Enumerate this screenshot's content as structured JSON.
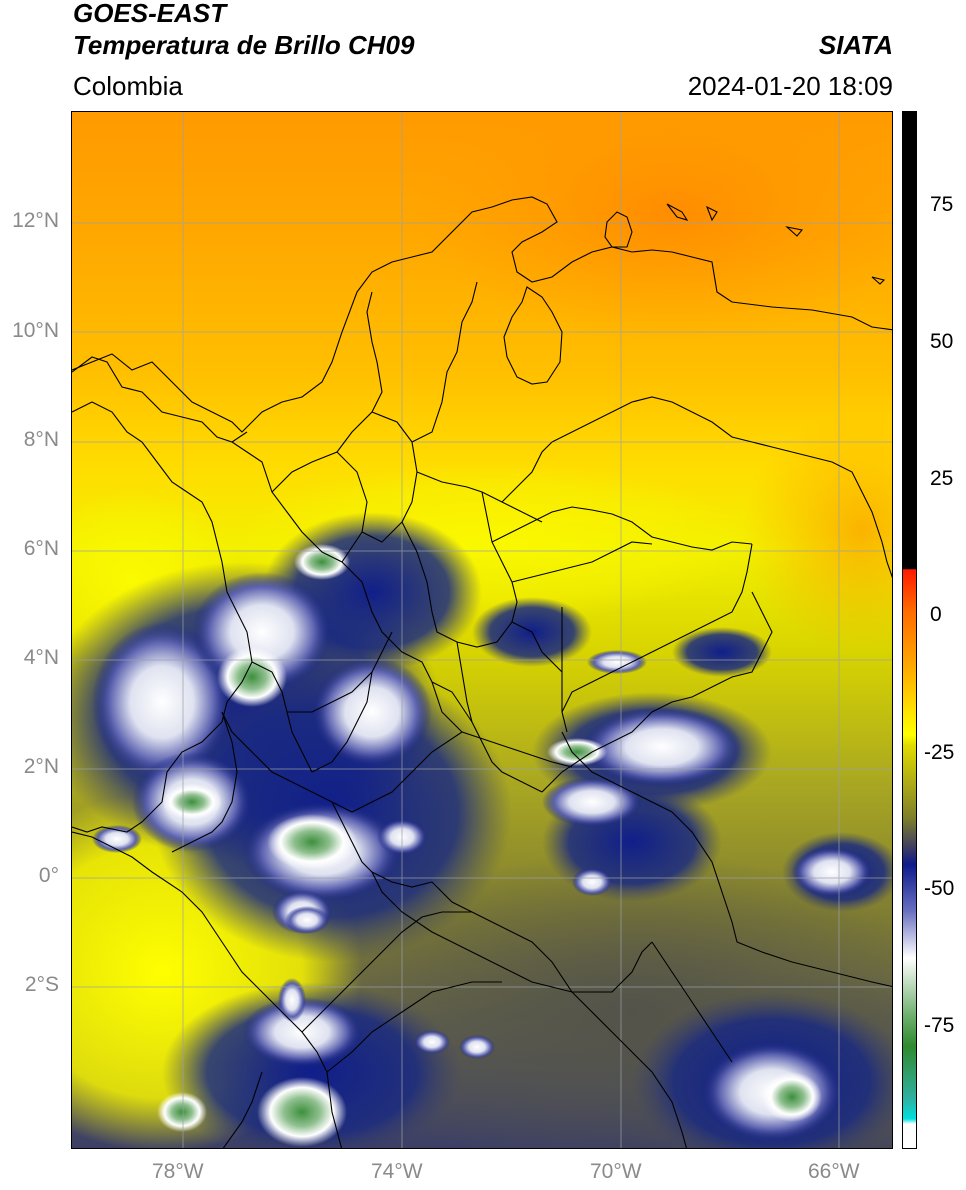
{
  "header": {
    "satellite": "GOES-EAST",
    "product": "Temperatura de Brillo CH09",
    "agency": "SIATA",
    "region": "Colombia",
    "datetime": "2024-01-20 18:09"
  },
  "map": {
    "lat_labels": [
      "12°N",
      "10°N",
      "8°N",
      "6°N",
      "4°N",
      "2°N",
      "0°",
      "2°S"
    ],
    "lon_labels": [
      "78°W",
      "74°W",
      "70°W",
      "66°W"
    ]
  },
  "colorbar": {
    "ticks": [
      "75",
      "50",
      "25",
      "0",
      "-25",
      "-50",
      "-75"
    ],
    "colors": {
      "hot": "#000000",
      "red": "#ff1a00",
      "orange": "#ff8c00",
      "yellow": "#ffff00",
      "olive": "#7f7f2a",
      "navy": "#0d1b8c",
      "white": "#ffffff",
      "green": "#2f8a2f",
      "cyan": "#00d8d8"
    }
  }
}
